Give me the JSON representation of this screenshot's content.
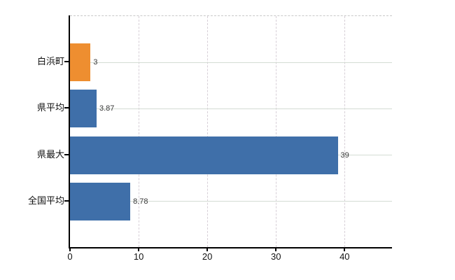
{
  "chart_data": {
    "type": "bar",
    "orientation": "horizontal",
    "title": "",
    "categories": [
      "白浜町",
      "県平均",
      "県最大",
      "全国平均"
    ],
    "values": [
      3,
      3.87,
      39,
      8.78
    ],
    "value_labels": [
      "3",
      "3.87",
      "39",
      "8.78"
    ],
    "bar_colors": [
      "#ee8e30",
      "#3f6fa9",
      "#3f6fa9",
      "#3f6fa9"
    ],
    "x_tick_labels": [
      "0",
      "10",
      "20",
      "30",
      "40"
    ],
    "x_tick_values": [
      0,
      10,
      20,
      30,
      40
    ],
    "xlim": [
      0,
      46.9
    ],
    "grid": true,
    "legend": false,
    "xlabel": "",
    "ylabel": ""
  },
  "colors": {
    "orange": "#ee8e30",
    "blue": "#3f6fa9",
    "axis": "#000000",
    "grid_horizontal": "#d4dcd4",
    "grid_vertical": "#d7cfd7",
    "plot_top_border": "#c9c9c9",
    "tick_text": "#111111",
    "value_text": "#3a3a3a",
    "background": "#ffffff"
  }
}
